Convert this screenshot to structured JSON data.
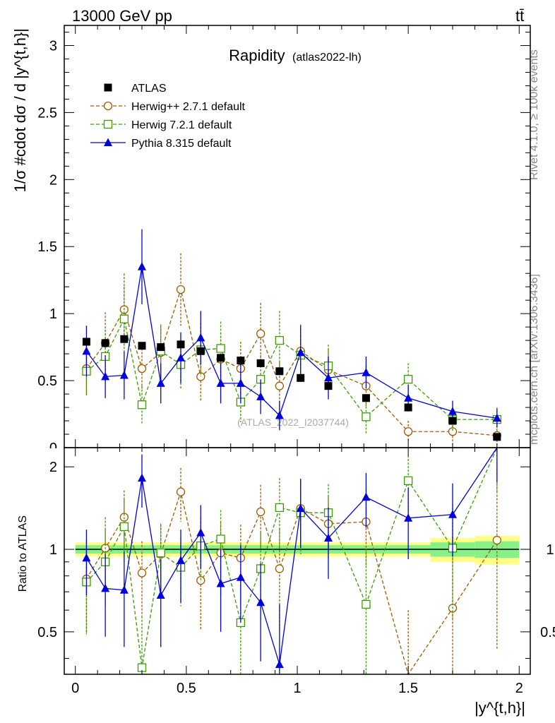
{
  "header": {
    "energy_label": "13000 GeV pp",
    "process_label": "tt̄"
  },
  "side_labels": {
    "rivet": "Rivet 4.1.0, ≥ 100k events",
    "mcplots": "mcplots.cern.ch [arXiv:1306.3436]"
  },
  "colors": {
    "atlas": "#000000",
    "herwigpp": "#a05a00",
    "herwig7": "#3c9c00",
    "pythia": "#0000dd",
    "band_inner": "#88f088",
    "band_outer": "#ffff88"
  },
  "chart_data": {
    "type": "scatter",
    "title": "Rapidity",
    "subtitle": "(atlas2022-lh)",
    "watermark": "(ATLAS_2022_I2037744)",
    "xlabel": "|y^{t,h}|",
    "ylabel": "1/σ #cdot dσ / d |y^{t,h}|",
    "ratio_ylabel": "Ratio to ATLAS",
    "xlim": [
      -0.05,
      2.05
    ],
    "ylim": [
      0,
      3.15
    ],
    "ratio_ylim": [
      0.35,
      2.35
    ],
    "xticks": [
      0,
      0.5,
      1,
      1.5,
      2
    ],
    "xtick_labels": [
      "0",
      "0.5",
      "1",
      "1.5",
      "2"
    ],
    "yticks": [
      0.5,
      1,
      1.5,
      2,
      2.5,
      3
    ],
    "ytick_labels": [
      "0.5",
      "1",
      "1.5",
      "2",
      "2.5",
      "3"
    ],
    "ratio_yticks_left": [
      0.5,
      1,
      2
    ],
    "ratio_ytick_labels_left": [
      "0.5",
      "1",
      "2"
    ],
    "ratio_yticks_right": [
      0.5,
      1
    ],
    "ratio_ytick_labels_right": [
      "0.5",
      "1"
    ],
    "x": [
      0.05,
      0.135,
      0.22,
      0.3,
      0.385,
      0.475,
      0.565,
      0.655,
      0.745,
      0.835,
      0.92,
      1.015,
      1.14,
      1.31,
      1.5,
      1.7,
      1.9
    ],
    "band_edges": [
      0,
      0.09,
      0.18,
      0.26,
      0.34,
      0.43,
      0.52,
      0.61,
      0.7,
      0.79,
      0.88,
      0.96,
      1.07,
      1.21,
      1.41,
      1.6,
      1.8,
      2.0
    ],
    "band_inner": [
      0.035,
      0.035,
      0.035,
      0.035,
      0.035,
      0.035,
      0.035,
      0.035,
      0.035,
      0.035,
      0.035,
      0.035,
      0.035,
      0.035,
      0.035,
      0.06,
      0.07
    ],
    "band_outer": [
      0.06,
      0.06,
      0.06,
      0.06,
      0.06,
      0.06,
      0.06,
      0.06,
      0.06,
      0.06,
      0.06,
      0.06,
      0.06,
      0.06,
      0.06,
      0.1,
      0.12
    ],
    "series": [
      {
        "name": "ATLAS",
        "marker": "square-filled",
        "line": "none",
        "values": [
          0.79,
          0.78,
          0.81,
          0.76,
          0.75,
          0.77,
          0.72,
          0.67,
          0.65,
          0.63,
          0.57,
          0.52,
          0.46,
          0.37,
          0.3,
          0.2,
          0.08
        ],
        "errors": [
          0.02,
          0.02,
          0.02,
          0.02,
          0.02,
          0.02,
          0.02,
          0.02,
          0.02,
          0.02,
          0.02,
          0.02,
          0.02,
          0.02,
          0.01,
          0.01,
          0.01
        ],
        "ratio": [],
        "ratio_errors": []
      },
      {
        "name": "Herwig++ 2.7.1 default",
        "marker": "circle-open",
        "line": "dashed",
        "values": [
          0.59,
          0.78,
          1.03,
          0.59,
          0.71,
          1.18,
          0.53,
          0.66,
          0.59,
          0.85,
          0.46,
          0.72,
          0.58,
          0.46,
          0.12,
          0.12,
          0.09
        ],
        "errors": [
          0.2,
          0.23,
          0.27,
          0.15,
          0.2,
          0.27,
          0.18,
          0.2,
          0.2,
          0.23,
          0.18,
          0.2,
          0.15,
          0.15,
          0.08,
          0.1,
          0.1
        ],
        "ratio": [
          0.78,
          1.01,
          1.31,
          0.82,
          0.96,
          1.62,
          0.77,
          0.97,
          0.93,
          1.37,
          0.85,
          1.41,
          1.24,
          1.26,
          0.35,
          0.61,
          1.08
        ],
        "ratio_errors": [
          0.29,
          0.3,
          0.33,
          0.25,
          0.27,
          0.36,
          0.26,
          0.29,
          0.3,
          0.35,
          0.34,
          0.38,
          0.32,
          0.4,
          0.25,
          0.5,
          0.65
        ]
      },
      {
        "name": "Herwig 7.2.1 default",
        "marker": "square-open",
        "line": "dashed",
        "values": [
          0.57,
          0.68,
          0.96,
          0.32,
          0.72,
          0.62,
          0.73,
          0.74,
          0.34,
          0.51,
          0.8,
          0.69,
          0.61,
          0.23,
          0.51,
          0.21,
          0.21
        ],
        "errors": [
          0.18,
          0.2,
          0.24,
          0.14,
          0.2,
          0.18,
          0.2,
          0.2,
          0.15,
          0.18,
          0.22,
          0.2,
          0.16,
          0.13,
          0.12,
          0.09,
          0.09
        ],
        "ratio": [
          0.76,
          0.9,
          1.21,
          0.37,
          0.97,
          0.86,
          1.03,
          1.09,
          0.54,
          0.85,
          1.42,
          1.36,
          1.36,
          0.63,
          1.78,
          1.01,
          2.35
        ],
        "ratio_errors": [
          0.27,
          0.28,
          0.31,
          0.2,
          0.27,
          0.24,
          0.27,
          0.3,
          0.23,
          0.3,
          0.4,
          0.4,
          0.37,
          0.35,
          0.42,
          0.45,
          0.75
        ]
      },
      {
        "name": "Pythia 8.315 default",
        "marker": "triangle-filled",
        "line": "solid",
        "values": [
          0.72,
          0.53,
          0.54,
          1.35,
          0.48,
          0.67,
          0.82,
          0.48,
          0.48,
          0.38,
          0.24,
          0.71,
          0.52,
          0.56,
          0.37,
          0.27,
          0.22
        ],
        "errors": [
          0.19,
          0.16,
          0.18,
          0.28,
          0.15,
          0.19,
          0.2,
          0.15,
          0.15,
          0.13,
          0.11,
          0.2,
          0.16,
          0.12,
          0.1,
          0.08,
          0.07
        ],
        "ratio": [
          0.93,
          0.72,
          0.71,
          1.82,
          0.68,
          0.91,
          1.15,
          0.75,
          0.79,
          0.64,
          0.38,
          1.41,
          1.1,
          1.55,
          1.3,
          1.34,
          2.35
        ],
        "ratio_errors": [
          0.25,
          0.24,
          0.27,
          0.4,
          0.24,
          0.27,
          0.3,
          0.25,
          0.25,
          0.25,
          0.25,
          0.4,
          0.32,
          0.35,
          0.38,
          0.4,
          0.6
        ]
      }
    ]
  }
}
